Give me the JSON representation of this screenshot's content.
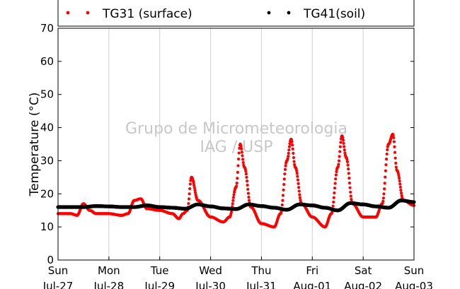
{
  "chart_data": {
    "type": "scatter",
    "ylabel": "Temperature (°C)",
    "ylim": [
      0,
      70
    ],
    "yticks": [
      0,
      10,
      20,
      30,
      40,
      50,
      60,
      70
    ],
    "xlim": [
      "2014-07-27",
      "2014-08-03"
    ],
    "xticks": [
      {
        "x": "2014-07-27",
        "label1": "Sun",
        "label2": "Jul-27"
      },
      {
        "x": "2014-07-28",
        "label1": "Mon",
        "label2": "Jul-28"
      },
      {
        "x": "2014-07-29",
        "label1": "Tue",
        "label2": "Jul-29"
      },
      {
        "x": "2014-07-30",
        "label1": "Wed",
        "label2": "Jul-30"
      },
      {
        "x": "2014-07-31",
        "label1": "Thu",
        "label2": "Jul-31"
      },
      {
        "x": "2014-08-01",
        "label1": "Fri",
        "label2": "Aug-01"
      },
      {
        "x": "2014-08-02",
        "label1": "Sat",
        "label2": "Aug-02"
      },
      {
        "x": "2014-08-03",
        "label1": "Sun",
        "label2": "Aug-03"
      }
    ],
    "grid": "vertical",
    "legend": {
      "placement": "top"
    },
    "watermark": [
      "Grupo de Micrometeorologia",
      "IAG / USP"
    ],
    "series": [
      {
        "name": "TG31 (surface)",
        "color": "#ff0000",
        "x": [
          "2014-07-27 00:00",
          "2014-07-27 06:00",
          "2014-07-27 09:00",
          "2014-07-27 12:00",
          "2014-07-27 15:00",
          "2014-07-27 18:00",
          "2014-07-28 00:00",
          "2014-07-28 06:00",
          "2014-07-28 09:00",
          "2014-07-28 12:00",
          "2014-07-28 15:00",
          "2014-07-28 18:00",
          "2014-07-29 00:00",
          "2014-07-29 06:00",
          "2014-07-29 09:00",
          "2014-07-29 11:00",
          "2014-07-29 13:00",
          "2014-07-29 15:00",
          "2014-07-29 18:00",
          "2014-07-30 00:00",
          "2014-07-30 06:00",
          "2014-07-30 09:00",
          "2014-07-30 12:00",
          "2014-07-30 14:00",
          "2014-07-30 16:00",
          "2014-07-30 19:00",
          "2014-07-31 00:00",
          "2014-07-31 06:00",
          "2014-07-31 09:00",
          "2014-07-31 12:00",
          "2014-07-31 14:00",
          "2014-07-31 16:00",
          "2014-07-31 19:00",
          "2014-08-01 00:00",
          "2014-08-01 06:00",
          "2014-08-01 09:00",
          "2014-08-01 12:00",
          "2014-08-01 14:00",
          "2014-08-01 16:00",
          "2014-08-01 19:00",
          "2014-08-02 00:00",
          "2014-08-02 06:00",
          "2014-08-02 09:00",
          "2014-08-02 12:00",
          "2014-08-02 14:00",
          "2014-08-02 16:00",
          "2014-08-02 19:00",
          "2014-08-03 00:00"
        ],
        "y": [
          14,
          14,
          13.5,
          17,
          15,
          14,
          14,
          13.5,
          14,
          18,
          18.5,
          15.5,
          15,
          14,
          12.5,
          14,
          15,
          25,
          18,
          13,
          11.5,
          13,
          22,
          35,
          28,
          16,
          11,
          10,
          14,
          30,
          36.5,
          28,
          17,
          13,
          10,
          14,
          28,
          37.5,
          31,
          17,
          13,
          13,
          17,
          35,
          38,
          27,
          18,
          16.5
        ]
      },
      {
        "name": "TG41(soil)",
        "color": "#000000",
        "x": [
          "2014-07-27 00:00",
          "2014-07-27 06:00",
          "2014-07-27 12:00",
          "2014-07-27 18:00",
          "2014-07-28 00:00",
          "2014-07-28 06:00",
          "2014-07-28 12:00",
          "2014-07-28 18:00",
          "2014-07-29 00:00",
          "2014-07-29 06:00",
          "2014-07-29 12:00",
          "2014-07-29 18:00",
          "2014-07-30 00:00",
          "2014-07-30 06:00",
          "2014-07-30 12:00",
          "2014-07-30 18:00",
          "2014-07-31 00:00",
          "2014-07-31 06:00",
          "2014-07-31 12:00",
          "2014-07-31 18:00",
          "2014-08-01 00:00",
          "2014-08-01 06:00",
          "2014-08-01 12:00",
          "2014-08-01 18:00",
          "2014-08-02 00:00",
          "2014-08-02 06:00",
          "2014-08-02 12:00",
          "2014-08-02 18:00",
          "2014-08-03 00:00"
        ],
        "y": [
          16,
          16,
          16,
          16.3,
          16.2,
          16,
          16,
          16.5,
          16,
          15.8,
          15.5,
          16.8,
          16.2,
          15.6,
          15.4,
          16.8,
          16.3,
          15.8,
          15.2,
          16.8,
          16.5,
          15.8,
          15,
          17.2,
          16.8,
          16.2,
          15.8,
          18,
          17.5
        ]
      }
    ]
  }
}
